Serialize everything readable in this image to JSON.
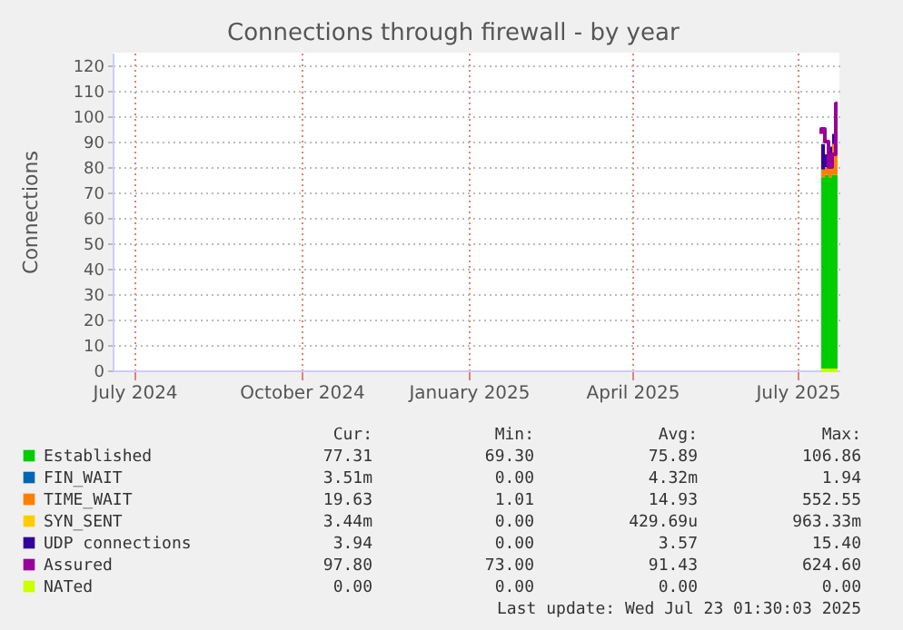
{
  "chart_data": {
    "type": "area",
    "title": "Connections through firewall - by year",
    "ylabel": "Connections",
    "x": [
      "2025-07-14",
      "2025-07-16",
      "2025-07-18",
      "2025-07-20",
      "2025-07-22",
      "2025-07-23"
    ],
    "stacked": true,
    "series": [
      {
        "name": "Established",
        "color": "#00cc00",
        "values": [
          75,
          76,
          77,
          76,
          77,
          77
        ]
      },
      {
        "name": "FIN_WAIT",
        "color": "#0066b3",
        "values": [
          null,
          null,
          null,
          null,
          null,
          null
        ]
      },
      {
        "name": "TIME_WAIT",
        "color": "#ff8000",
        "values": [
          4,
          3,
          3,
          8,
          12,
          19
        ]
      },
      {
        "name": "SYN_SENT",
        "color": "#ffcc00",
        "values": [
          null,
          null,
          null,
          null,
          null,
          null
        ]
      },
      {
        "name": "UDP connections",
        "color": "#330099",
        "values": [
          15,
          10,
          5,
          4,
          4,
          4
        ]
      },
      {
        "name": "Assured",
        "type": "line",
        "color": "#990099",
        "values": [
          93,
          95,
          90,
          80,
          85,
          105
        ]
      },
      {
        "name": "NATed",
        "type": "line",
        "color": "#ccff00",
        "values": [
          0,
          0,
          0,
          0,
          0,
          0
        ]
      }
    ],
    "xlim": [
      "2024-06-19",
      "2025-07-24"
    ],
    "xticks": [
      {
        "value": "2024-07-01",
        "label": "July 2024"
      },
      {
        "value": "2024-10-01",
        "label": "October 2024"
      },
      {
        "value": "2025-01-01",
        "label": "January 2025"
      },
      {
        "value": "2025-04-01",
        "label": "April 2025"
      },
      {
        "value": "2025-07-01",
        "label": "July 2025"
      }
    ],
    "ylim": [
      0,
      125
    ],
    "yticks": [
      0,
      10,
      20,
      30,
      40,
      50,
      60,
      70,
      80,
      90,
      100,
      110,
      120
    ],
    "grid": true,
    "legend": "bottom",
    "annotations": [
      "Cur:",
      "Min:",
      "Avg:",
      "Max:",
      "77.31",
      "69.30",
      "75.89",
      "106.86",
      "3.51m",
      "0.00",
      "4.32m",
      "1.94",
      "19.63",
      "1.01",
      "14.93",
      "552.55",
      "3.44m",
      "0.00",
      "429.69u",
      "963.33m",
      "3.94",
      "0.00",
      "3.57",
      "15.40",
      "97.80",
      "73.00",
      "91.43",
      "624.60",
      "0.00",
      "0.00",
      "0.00",
      "0.00",
      "Last update: Wed Jul 23 01:30:03 2025"
    ]
  }
}
